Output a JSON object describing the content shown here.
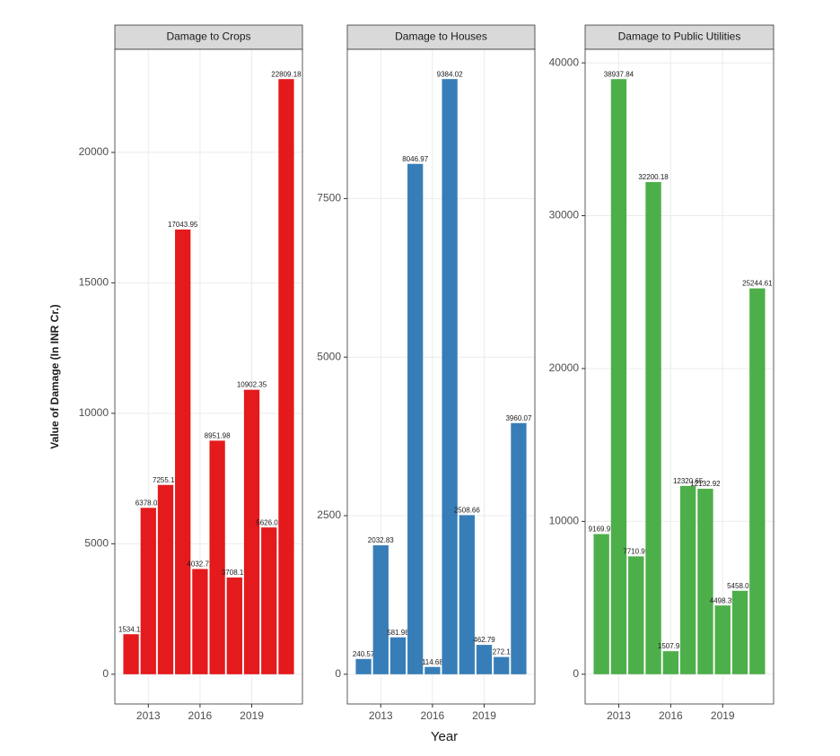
{
  "chart_data": [
    {
      "type": "bar",
      "title": "Damage to Crops",
      "y_label": "Value of Damage (In INR Cr.)",
      "x": [
        2012,
        2013,
        2014,
        2015,
        2016,
        2017,
        2018,
        2019,
        2020,
        2021
      ],
      "values": [
        1534.11,
        6378.03,
        7255.15,
        17043.95,
        4032.72,
        8951.98,
        3708.19,
        10902.35,
        5626.02,
        22809.18
      ],
      "color": "#e41a1c",
      "xlim": [
        2011.06,
        2021.94
      ],
      "xticks": [
        2013,
        2016,
        2019
      ],
      "ylim": [
        -1140,
        23950
      ],
      "yticks": [
        0,
        5000,
        10000,
        15000,
        20000
      ],
      "grid": true
    },
    {
      "type": "bar",
      "title": "Damage to Houses",
      "x_label": "Year",
      "x": [
        2012,
        2013,
        2014,
        2015,
        2016,
        2017,
        2018,
        2019,
        2020,
        2021
      ],
      "values": [
        240.57,
        2032.83,
        581.98,
        8046.97,
        114.68,
        9384.02,
        2508.66,
        462.79,
        272.1,
        3960.07
      ],
      "color": "#377eb8",
      "xlim": [
        2011.06,
        2021.94
      ],
      "xticks": [
        2013,
        2016,
        2019
      ],
      "ylim": [
        -469,
        9853
      ],
      "yticks": [
        0,
        2500,
        5000,
        7500
      ],
      "grid": true
    },
    {
      "type": "bar",
      "title": "Damage to Public Utilities",
      "x": [
        2012,
        2013,
        2014,
        2015,
        2016,
        2017,
        2018,
        2019,
        2020,
        2021
      ],
      "values": [
        9169.97,
        38937.84,
        7710.95,
        32200.18,
        1507.93,
        12320.65,
        12132.92,
        4498.39,
        5458.01,
        25244.61
      ],
      "color": "#4daf4a",
      "xlim": [
        2011.06,
        2021.94
      ],
      "xticks": [
        2013,
        2016,
        2019
      ],
      "ylim": [
        -1947,
        40885
      ],
      "yticks": [
        0,
        10000,
        20000,
        30000,
        40000
      ],
      "grid": true
    }
  ]
}
